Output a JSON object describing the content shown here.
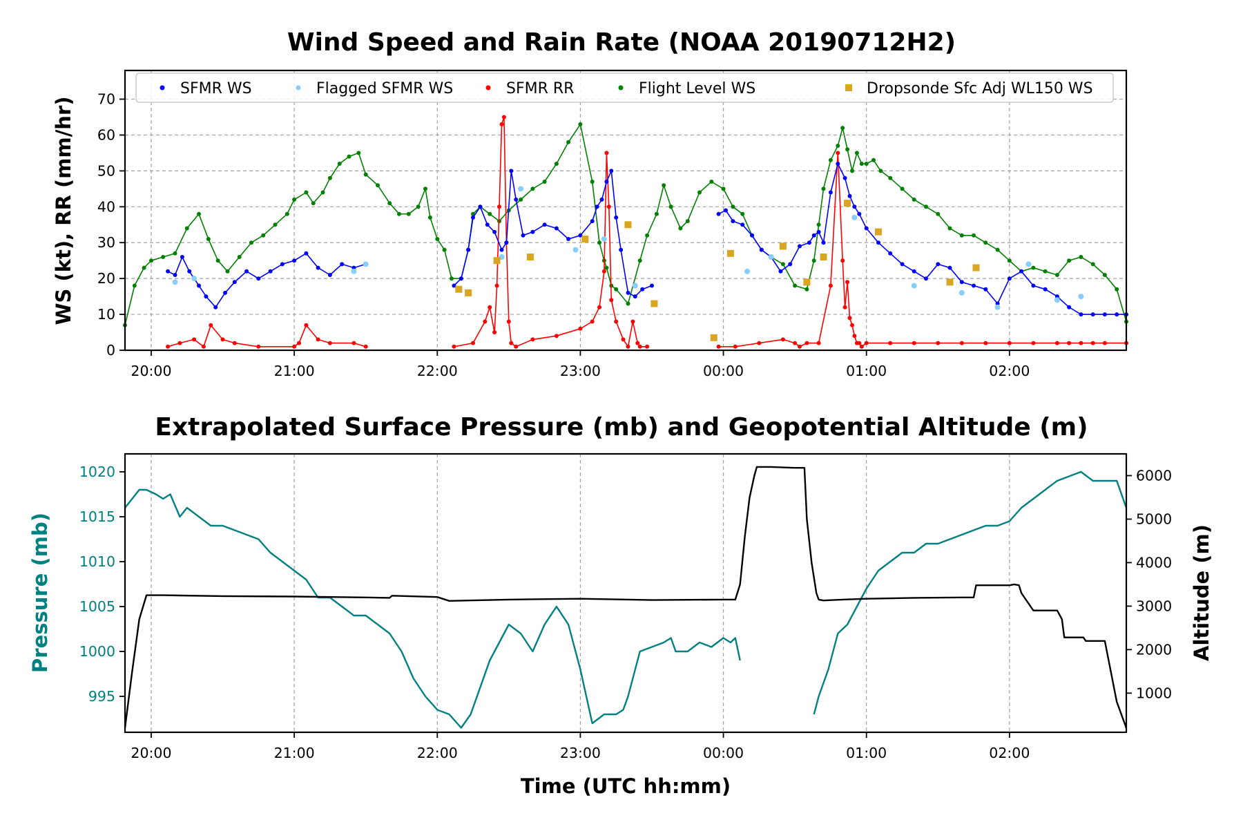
{
  "chart_data": [
    {
      "type": "line",
      "title": "Wind Speed and Rain Rate (NOAA 20190712H2)",
      "xlabel": "",
      "ylabel": "WS (kt), RR (mm/hr)",
      "xlim": [
        "19:49",
        "02:49"
      ],
      "ylim": [
        0,
        78
      ],
      "x_ticks": [
        "20:00",
        "21:00",
        "22:00",
        "23:00",
        "00:00",
        "01:00",
        "02:00"
      ],
      "y_ticks": [
        "0",
        "10",
        "20",
        "30",
        "40",
        "50",
        "60",
        "70"
      ],
      "grid": true,
      "legend_placement": "top",
      "legend": [
        "SFMR WS",
        "Flagged SFMR WS",
        "SFMR RR",
        "Flight Level WS",
        "Dropsonde Sfc Adj WL150 WS"
      ],
      "colors": {
        "sfmr_ws": "#0000ff",
        "flagged": "#87cefa",
        "sfmr_rr": "#ff0000",
        "flight_level": "#008000",
        "dropsonde": "#daa520"
      },
      "series": [
        {
          "name": "Flight Level WS",
          "x": [
            "19:49",
            "19:53",
            "19:57",
            "20:00",
            "20:05",
            "20:10",
            "20:15",
            "20:20",
            "20:24",
            "20:28",
            "20:32",
            "20:37",
            "20:42",
            "20:47",
            "20:52",
            "20:57",
            "21:00",
            "21:05",
            "21:08",
            "21:12",
            "21:15",
            "21:19",
            "21:23",
            "21:27",
            "21:30",
            "21:35",
            "21:40",
            "21:44",
            "21:48",
            "21:52",
            "21:55",
            "21:57",
            "22:00",
            "22:03",
            "22:06",
            "22:10",
            "22:13",
            "22:15",
            "22:18",
            "22:22",
            "22:26",
            "22:30",
            "22:35",
            "22:40",
            "22:45",
            "22:50",
            "22:55",
            "23:00",
            "23:05",
            "23:08",
            "23:10",
            "23:11",
            "23:13",
            "23:15",
            "23:20",
            "23:25",
            "23:28",
            "23:32",
            "23:35",
            "23:38",
            "23:42",
            "23:45",
            "23:50",
            "23:55",
            "00:00",
            "00:04",
            "00:08",
            "00:12",
            "00:16",
            "00:20",
            "00:25",
            "00:30",
            "00:35",
            "00:38",
            "00:40",
            "00:42",
            "00:45",
            "00:48",
            "00:50",
            "00:52",
            "00:54",
            "00:56",
            "00:58",
            "01:00",
            "01:03",
            "01:06",
            "01:10",
            "01:15",
            "01:20",
            "01:25",
            "01:30",
            "01:35",
            "01:40",
            "01:45",
            "01:50",
            "01:55",
            "02:00",
            "02:05",
            "02:10",
            "02:15",
            "02:20",
            "02:25",
            "02:30",
            "02:35",
            "02:40",
            "02:45",
            "02:49"
          ],
          "values": [
            7,
            18,
            23,
            25,
            26,
            27,
            34,
            38,
            31,
            25,
            22,
            26,
            30,
            32,
            35,
            38,
            42,
            44,
            41,
            44,
            48,
            52,
            54,
            55,
            49,
            46,
            41,
            38,
            38,
            40,
            45,
            37,
            31,
            28,
            20,
            20,
            28,
            38,
            40,
            38,
            36,
            39,
            42,
            45,
            47,
            52,
            58,
            63,
            47,
            30,
            25,
            23,
            18,
            17,
            13,
            25,
            32,
            38,
            46,
            40,
            34,
            36,
            44,
            47,
            45,
            40,
            38,
            32,
            28,
            26,
            24,
            18,
            17,
            25,
            35,
            45,
            53,
            57,
            62,
            56,
            50,
            55,
            52,
            52,
            53,
            50,
            48,
            45,
            42,
            40,
            38,
            34,
            32,
            32,
            30,
            28,
            25,
            22,
            23,
            22,
            21,
            25,
            26,
            24,
            21,
            17,
            8
          ]
        },
        {
          "name": "SFMR WS",
          "x": [
            "20:07",
            "20:10",
            "20:13",
            "20:16",
            "20:20",
            "20:23",
            "20:27",
            "20:31",
            "20:35",
            "20:40",
            "20:45",
            "20:50",
            "20:55",
            "21:00",
            "21:05",
            "21:10",
            "21:15",
            "21:20",
            "21:25",
            "21:30",
            null,
            "22:07",
            "22:10",
            "22:13",
            "22:15",
            "22:18",
            "22:21",
            "22:24",
            "22:27",
            "22:29",
            "22:31",
            "22:33",
            "22:36",
            "22:40",
            "22:45",
            "22:50",
            "22:55",
            "23:00",
            "23:05",
            "23:07",
            "23:09",
            "23:11",
            "23:13",
            "23:15",
            "23:17",
            "23:20",
            "23:23",
            "23:26",
            "23:30",
            null,
            "23:58",
            "00:01",
            "00:04",
            "00:08",
            "00:12",
            "00:16",
            "00:20",
            "00:24",
            "00:28",
            "00:32",
            "00:36",
            "00:38",
            "00:40",
            "00:42",
            "00:45",
            "00:48",
            "00:51",
            "00:53",
            "00:55",
            "00:57",
            "01:00",
            "01:05",
            "01:10",
            "01:15",
            "01:20",
            "01:25",
            "01:30",
            "01:35",
            "01:40",
            "01:45",
            "01:50",
            "01:55",
            "02:00",
            "02:05",
            "02:10",
            "02:15",
            "02:20",
            "02:25",
            "02:30",
            "02:35",
            "02:40",
            "02:45",
            "02:49"
          ],
          "values": [
            22,
            21,
            26,
            22,
            18,
            15,
            12,
            16,
            19,
            22,
            20,
            22,
            24,
            25,
            27,
            23,
            21,
            24,
            23,
            24,
            null,
            18,
            20,
            28,
            37,
            40,
            35,
            33,
            28,
            30,
            50,
            42,
            32,
            33,
            35,
            34,
            31,
            32,
            36,
            40,
            42,
            47,
            50,
            37,
            28,
            16,
            15,
            17,
            18,
            null,
            38,
            39,
            36,
            35,
            32,
            28,
            26,
            22,
            24,
            29,
            30,
            32,
            33,
            30,
            44,
            52,
            48,
            43,
            40,
            38,
            34,
            30,
            27,
            24,
            22,
            20,
            24,
            23,
            19,
            18,
            17,
            13,
            20,
            22,
            18,
            17,
            15,
            12,
            10,
            10,
            10,
            10,
            10
          ]
        },
        {
          "name": "Flagged SFMR WS",
          "x": [
            "20:10",
            "20:18",
            "21:25",
            "21:30",
            "22:27",
            "22:35",
            "22:58",
            "23:10",
            "23:23",
            "00:10",
            "00:20",
            "00:55",
            "01:20",
            "01:40",
            "01:55",
            "02:08",
            "02:20",
            "02:30"
          ],
          "values": [
            19,
            20,
            22,
            24,
            26,
            45,
            28,
            31,
            18,
            22,
            26,
            37,
            18,
            16,
            12,
            24,
            14,
            15
          ]
        },
        {
          "name": "SFMR RR",
          "x": [
            "20:07",
            "20:12",
            "20:18",
            "20:22",
            "20:25",
            "20:30",
            "20:35",
            "20:45",
            "21:00",
            "21:02",
            "21:05",
            "21:10",
            "21:15",
            "21:25",
            "21:30",
            null,
            "22:07",
            "22:15",
            "22:20",
            "22:22",
            "22:24",
            "22:25",
            "22:26",
            "22:27",
            "22:28",
            "22:29",
            "22:30",
            "22:31",
            "22:33",
            "22:40",
            "22:50",
            "23:00",
            "23:05",
            "23:08",
            "23:10",
            "23:11",
            "23:12",
            "23:13",
            "23:15",
            "23:18",
            "23:20",
            "23:22",
            "23:24",
            "23:25",
            "23:28",
            null,
            "23:58",
            "00:05",
            "00:15",
            "00:25",
            "00:30",
            "00:32",
            "00:35",
            "00:40",
            "00:45",
            "00:48",
            "00:50",
            "00:51",
            "00:52",
            "00:53",
            "00:54",
            "00:55",
            "00:56",
            "00:57",
            "00:58",
            "01:00",
            "01:10",
            "01:20",
            "01:30",
            "01:40",
            "01:50",
            "02:00",
            "02:10",
            "02:20",
            "02:25",
            "02:30",
            "02:35",
            "02:40",
            "02:49"
          ],
          "values": [
            1,
            2,
            3,
            1,
            7,
            3,
            2,
            1,
            1,
            2,
            7,
            3,
            2,
            2,
            1,
            null,
            1,
            2,
            8,
            12,
            5,
            18,
            40,
            63,
            65,
            30,
            8,
            2,
            1,
            3,
            4,
            6,
            8,
            12,
            22,
            55,
            40,
            14,
            8,
            3,
            1,
            8,
            2,
            1,
            1,
            null,
            1,
            1,
            2,
            3,
            2,
            1,
            2,
            2,
            18,
            55,
            25,
            12,
            19,
            9,
            7,
            4,
            2,
            2,
            1,
            2,
            2,
            2,
            2,
            2,
            2,
            2,
            2,
            2,
            2,
            2,
            2,
            2,
            2
          ]
        },
        {
          "name": "Dropsonde Sfc Adj WL150 WS",
          "x": [
            "22:09",
            "22:13",
            "22:25",
            "22:39",
            "23:02",
            "23:20",
            "23:31",
            "23:56",
            "00:03",
            "00:25",
            "00:35",
            "00:42",
            "00:52",
            "01:05",
            "01:35",
            "01:46"
          ],
          "values": [
            17,
            16,
            25,
            26,
            31,
            35,
            13,
            3.5,
            27,
            29,
            19,
            26,
            41,
            33,
            19,
            23
          ]
        }
      ]
    },
    {
      "type": "line",
      "title": "Extrapolated Surface Pressure (mb) and Geopotential Altitude (m)",
      "xlabel": "Time (UTC hh:mm)",
      "ylabel": "Pressure (mb)",
      "y2label": "Altitude (m)",
      "xlim": [
        "19:49",
        "02:49"
      ],
      "ylim": [
        991,
        1022
      ],
      "y2lim": [
        100,
        6500
      ],
      "x_ticks": [
        "20:00",
        "21:00",
        "22:00",
        "23:00",
        "00:00",
        "01:00",
        "02:00"
      ],
      "y_ticks": [
        "995",
        "1000",
        "1005",
        "1010",
        "1015",
        "1020"
      ],
      "y2_ticks": [
        "1000",
        "2000",
        "3000",
        "4000",
        "5000",
        "6000"
      ],
      "grid": true,
      "colors": {
        "pressure": "#008080",
        "altitude": "#000000"
      },
      "series": [
        {
          "name": "",
          "x": [
            "19:49",
            "19:52",
            "19:55",
            "19:58",
            "20:02",
            "20:05",
            "20:08",
            "20:12",
            "20:15",
            "20:20",
            "20:25",
            "20:30",
            "20:35",
            "20:40",
            "20:45",
            "20:50",
            "20:55",
            "21:00",
            "21:05",
            "21:10",
            "21:15",
            "21:20",
            "21:25",
            "21:30",
            "21:35",
            "21:40",
            "21:45",
            "21:50",
            "21:55",
            "22:00",
            "22:05",
            "22:10",
            "22:14",
            "22:18",
            "22:22",
            "22:26",
            "22:30",
            "22:35",
            "22:40",
            "22:45",
            "22:50",
            "22:55",
            "23:00",
            "23:05",
            "23:10",
            "23:15",
            "23:18",
            "23:20",
            "23:25",
            "23:30",
            "23:35",
            "23:38",
            "23:40",
            "23:45",
            "23:50",
            "23:55",
            "00:00",
            "00:03",
            "00:05",
            "00:07",
            null,
            "00:38",
            "00:40",
            "00:44",
            "00:48",
            "00:52",
            "00:56",
            "01:00",
            "01:05",
            "01:10",
            "01:15",
            "01:20",
            "01:25",
            "01:30",
            "01:35",
            "01:40",
            "01:45",
            "01:50",
            "01:55",
            "02:00",
            "02:05",
            "02:10",
            "02:15",
            "02:20",
            "02:25",
            "02:30",
            "02:35",
            "02:40",
            "02:45",
            "02:49"
          ],
          "values": [
            1016,
            1017,
            1018,
            1018,
            1017.5,
            1017,
            1017.5,
            1015,
            1016,
            1015,
            1014,
            1014,
            1013.5,
            1013,
            1012.5,
            1011,
            1010,
            1009,
            1008,
            1006,
            1006,
            1005,
            1004,
            1004,
            1003,
            1002,
            1000,
            997,
            995,
            993.5,
            993,
            991.5,
            993,
            996,
            999,
            1001,
            1003,
            1002,
            1000,
            1003,
            1005,
            1003,
            998,
            992,
            993,
            993,
            993.5,
            995,
            1000,
            1000.5,
            1001,
            1001.5,
            1000,
            1000,
            1001,
            1000.5,
            1001.5,
            1001,
            1001.5,
            999,
            null,
            993,
            995,
            998,
            1002,
            1003,
            1005,
            1007,
            1009,
            1010,
            1011,
            1011,
            1012,
            1012,
            1012.5,
            1013,
            1013.5,
            1014,
            1014,
            1014.5,
            1016,
            1017,
            1018,
            1019,
            1019.5,
            1020,
            1019,
            1019,
            1019,
            1016
          ]
        },
        {
          "name": "",
          "x": [
            "19:49",
            "19:52",
            "19:55",
            "19:58",
            "20:05",
            "20:30",
            "21:00",
            "21:30",
            "21:40",
            "21:41",
            "22:00",
            "22:05",
            "22:30",
            "23:00",
            "23:30",
            "00:00",
            "00:05",
            "00:07",
            "00:09",
            "00:11",
            "00:13",
            "00:14",
            "00:20",
            "00:30",
            "00:34",
            "00:35",
            "00:37",
            "00:39",
            "00:40",
            "00:42",
            "00:50",
            "01:00",
            "01:20",
            "01:40",
            "01:45",
            "01:46",
            "02:00",
            "02:02",
            "02:04",
            "02:05",
            "02:10",
            "02:20",
            "02:22",
            "02:23",
            "02:30",
            "02:31",
            "02:32",
            "02:35",
            "02:40",
            "02:45",
            "02:47",
            "02:49"
          ],
          "values": [
            200,
            1500,
            2700,
            3250,
            3250,
            3230,
            3220,
            3200,
            3190,
            3240,
            3210,
            3120,
            3150,
            3170,
            3140,
            3150,
            3150,
            3500,
            4600,
            5500,
            6000,
            6200,
            6200,
            6180,
            6180,
            5000,
            4000,
            3300,
            3150,
            3130,
            3150,
            3170,
            3190,
            3200,
            3200,
            3480,
            3480,
            3500,
            3480,
            3300,
            2900,
            2900,
            2700,
            2280,
            2280,
            2280,
            2200,
            2200,
            2200,
            800,
            500,
            200
          ]
        }
      ]
    }
  ]
}
